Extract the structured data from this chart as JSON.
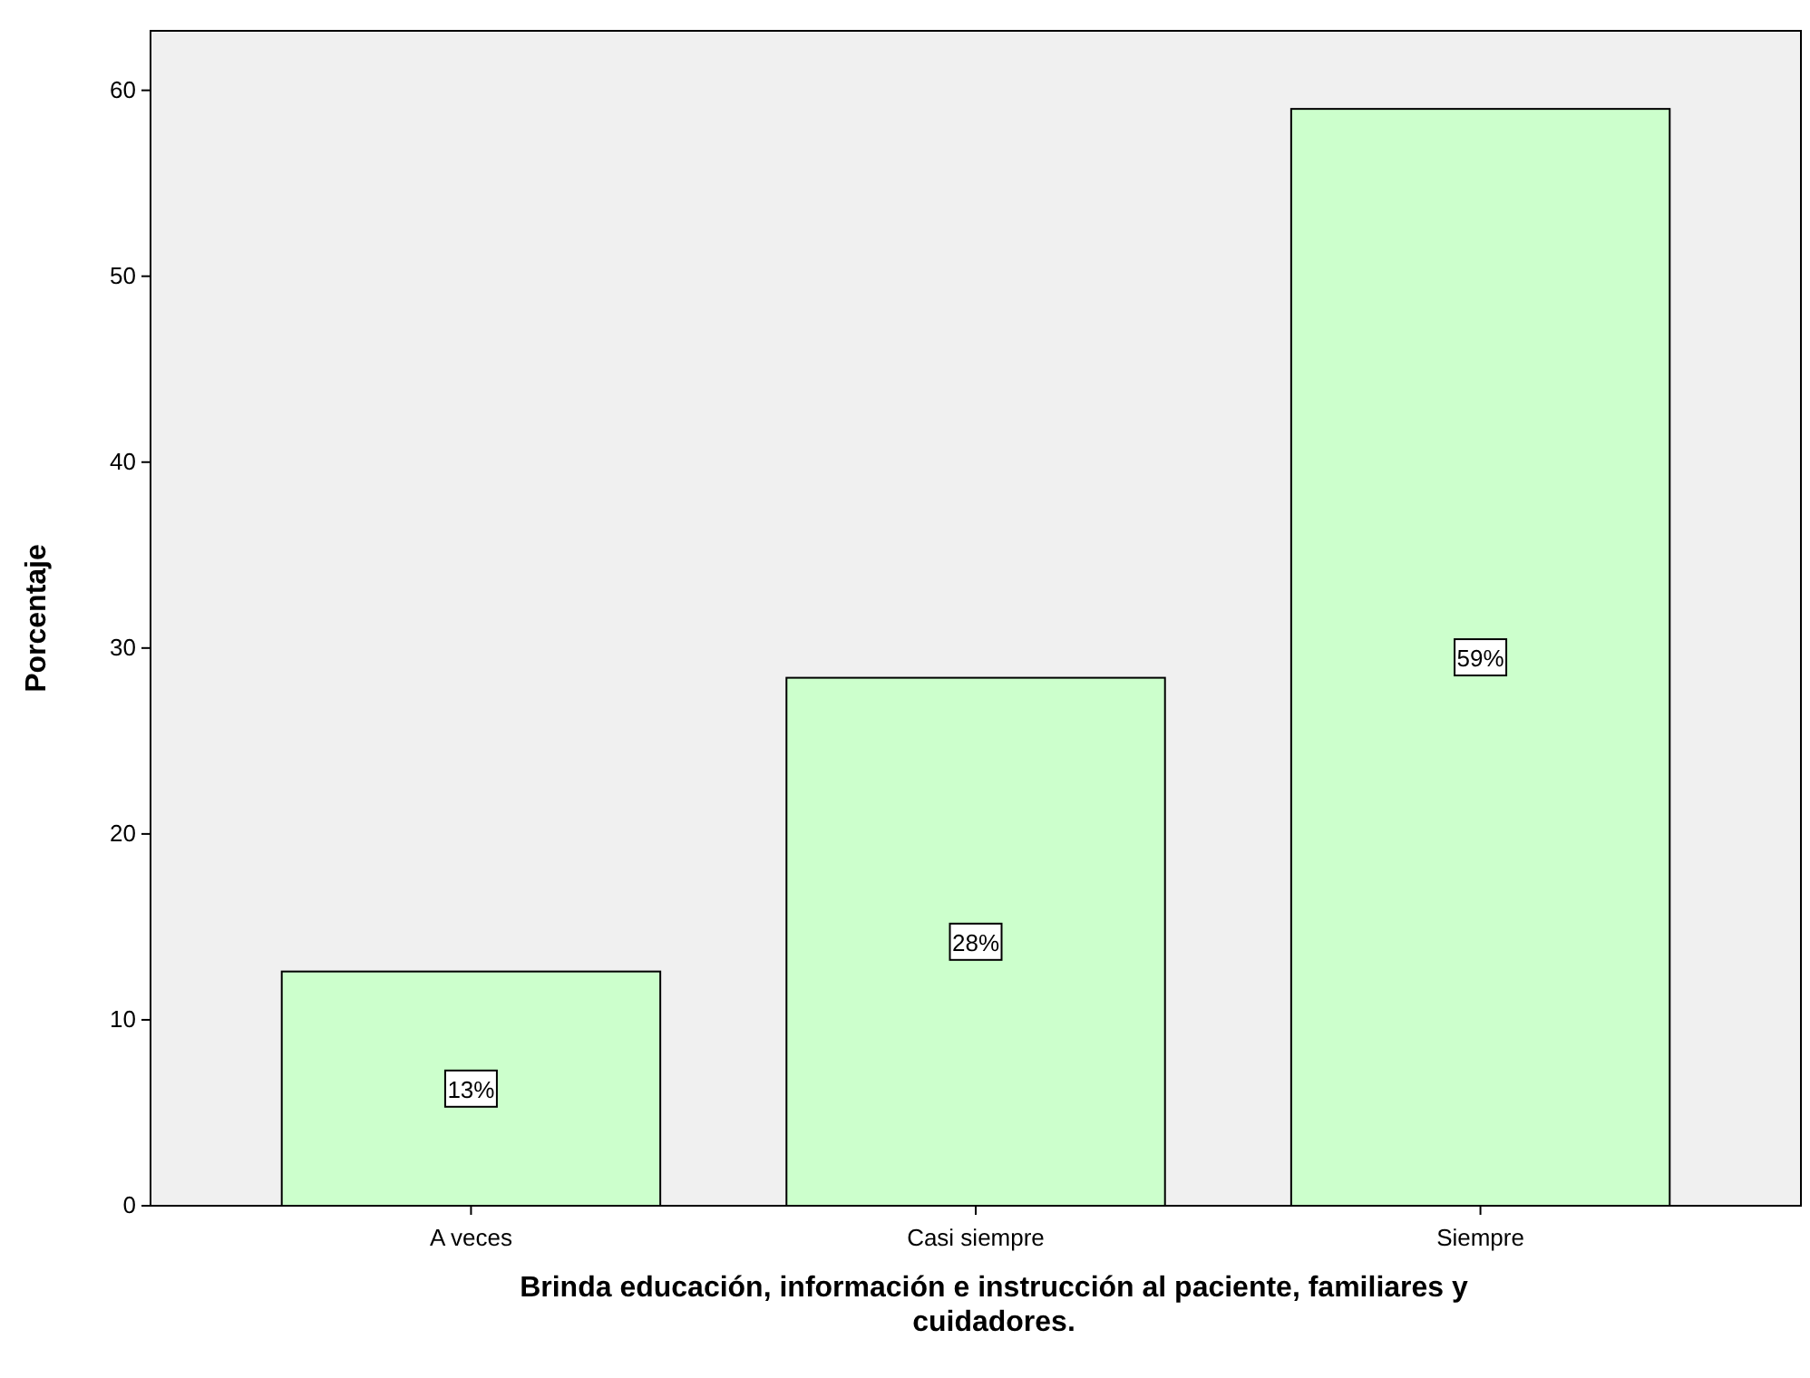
{
  "chart_data": {
    "type": "bar",
    "xlabel": "Brinda educación, información e instrucción al paciente, familiares y cuidadores.",
    "ylabel": "Porcentaje",
    "categories": [
      "A veces",
      "Casi siempre",
      "Siempre"
    ],
    "values": [
      12.6,
      28.4,
      59.0
    ],
    "value_labels": [
      "13%",
      "28%",
      "59%"
    ],
    "color": "#ccffcc",
    "ylim": [
      0,
      63.2
    ],
    "yticks": [
      0,
      10,
      20,
      30,
      40,
      50,
      60
    ],
    "grid": false
  }
}
